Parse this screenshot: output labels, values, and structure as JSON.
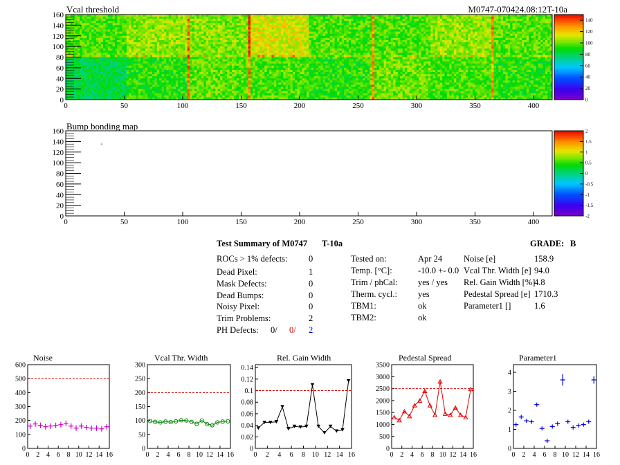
{
  "header": {
    "map1_title": "Vcal threshold",
    "map2_title": "Bump bonding map",
    "module_id": "M0747-070424.08:12T-10a"
  },
  "maps": {
    "x_ticks": [
      "0",
      "50",
      "100",
      "150",
      "200",
      "250",
      "300",
      "350",
      "400"
    ],
    "x_tick_values": [
      0,
      50,
      100,
      150,
      200,
      250,
      300,
      350,
      400
    ],
    "xlim": [
      0,
      416
    ],
    "y_ticks": [
      "0",
      "20",
      "40",
      "60",
      "80",
      "100",
      "120",
      "140",
      "160"
    ],
    "y_tick_values": [
      0,
      20,
      40,
      60,
      80,
      100,
      120,
      140,
      160
    ],
    "ylim": [
      0,
      160
    ],
    "vcal_colorbar_ticks": [
      "0",
      "20",
      "40",
      "60",
      "80",
      "100",
      "120",
      "140"
    ],
    "vcal_colorbar_values": [
      0,
      20,
      40,
      60,
      80,
      100,
      120,
      140
    ],
    "vcal_colorbar_range": [
      0,
      150
    ],
    "bump_colorbar_ticks": [
      "2",
      "1.5",
      "1",
      "0.5",
      "0",
      "-0.5",
      "-1",
      "-1.5",
      "-2"
    ],
    "bump_colorbar_values": [
      2,
      1.5,
      1,
      0.5,
      0,
      -0.5,
      -1,
      -1.5,
      -2
    ],
    "bump_colorbar_range": [
      -2,
      2
    ],
    "vcal_roc_mean_threshold": [
      [
        96,
        104,
        102,
        112,
        96,
        96,
        104,
        98
      ],
      [
        82,
        92,
        98,
        96,
        92,
        100,
        96,
        92
      ]
    ],
    "vcal_hot_columns": [
      104,
      105,
      156,
      262,
      364
    ],
    "bump_marked_pixel": [
      30,
      136
    ]
  },
  "summary": {
    "title": "Test Summary of M0747",
    "module_label": "T-10a",
    "grade_label": "GRADE:",
    "grade_value": "B",
    "left": [
      {
        "label": "ROCs > 1% defects:",
        "value": "0"
      },
      {
        "label": "Dead Pixel:",
        "value": "1"
      },
      {
        "label": "Mask Defects:",
        "value": "0"
      },
      {
        "label": "Dead Bumps:",
        "value": "0"
      },
      {
        "label": "Noisy Pixel:",
        "value": "0"
      },
      {
        "label": "Trim Problems:",
        "value": "2"
      }
    ],
    "ph_defects": {
      "label": "PH Defects:",
      "v1": "0/",
      "v2": "0/",
      "v3": "2"
    },
    "middle": [
      {
        "label": "Tested on:",
        "value": "Apr 24"
      },
      {
        "label": "Temp. [°C]:",
        "value": "-10.0 +- 0.0"
      },
      {
        "label": "Trim / phCal:",
        "value": "yes / yes"
      },
      {
        "label": "Therm. cycl.:",
        "value": "yes"
      },
      {
        "label": "TBM1:",
        "value": "ok"
      },
      {
        "label": "TBM2:",
        "value": "ok"
      }
    ],
    "right": [
      {
        "label": "Noise [e]",
        "value": "158.9"
      },
      {
        "label": "Vcal Thr. Width [e]",
        "value": "94.0"
      },
      {
        "label": "Rel. Gain Width [%]",
        "value": "4.8"
      },
      {
        "label": "Pedestal Spread [e]",
        "value": "1710.3"
      },
      {
        "label": "Parameter1 []",
        "value": "1.6"
      }
    ]
  },
  "colors": {
    "noise": "#cc00cc",
    "vcal": "#008800",
    "relgain": "#000000",
    "pedestal": "#dd0000",
    "param1": "#0000dd",
    "limit_line": "#cc0000"
  },
  "chart_data": [
    {
      "type": "line",
      "title": "Noise",
      "marker": "cross",
      "x": [
        0,
        1,
        2,
        3,
        4,
        5,
        6,
        7,
        8,
        9,
        10,
        11,
        12,
        13,
        14,
        15
      ],
      "values": [
        160,
        175,
        165,
        155,
        160,
        165,
        170,
        180,
        160,
        145,
        160,
        150,
        145,
        145,
        140,
        155
      ],
      "ylim": [
        0,
        600
      ],
      "yticks": [
        0,
        100,
        200,
        300,
        400,
        500,
        600
      ],
      "xlim": [
        0,
        16
      ],
      "xticks": [
        0,
        2,
        4,
        6,
        8,
        10,
        12,
        14,
        16
      ],
      "limit": 500,
      "connect": false
    },
    {
      "type": "line",
      "title": "Vcal Thr. Width",
      "marker": "circle",
      "x": [
        0,
        1,
        2,
        3,
        4,
        5,
        6,
        7,
        8,
        9,
        10,
        11,
        12,
        13,
        14,
        15
      ],
      "values": [
        98,
        95,
        93,
        96,
        94,
        97,
        101,
        100,
        95,
        88,
        100,
        87,
        83,
        93,
        96,
        97
      ],
      "ylim": [
        0,
        300
      ],
      "yticks": [
        0,
        50,
        100,
        150,
        200,
        250,
        300
      ],
      "xlim": [
        0,
        16
      ],
      "xticks": [
        0,
        2,
        4,
        6,
        8,
        10,
        12,
        14,
        16
      ],
      "limit": 200,
      "connect": true
    },
    {
      "type": "line",
      "title": "Rel. Gain Width",
      "marker": "triangle-down",
      "x": [
        0,
        1,
        2,
        3,
        4,
        5,
        6,
        7,
        8,
        9,
        10,
        11,
        12,
        13,
        14,
        15
      ],
      "values": [
        0.035,
        0.045,
        0.045,
        0.046,
        0.072,
        0.034,
        0.038,
        0.037,
        0.038,
        0.11,
        0.038,
        0.027,
        0.038,
        0.03,
        0.032,
        0.117
      ],
      "ylim": [
        0,
        0.145
      ],
      "yticks": [
        0,
        0.02,
        0.04,
        0.06,
        0.08,
        0.1,
        0.12,
        0.14
      ],
      "ytick_labels": [
        "0",
        "0.02",
        "0.04",
        "0.06",
        "0.08",
        "0.1",
        "0.12",
        "0.14"
      ],
      "xlim": [
        0,
        16
      ],
      "xticks": [
        0,
        2,
        4,
        6,
        8,
        10,
        12,
        14,
        16
      ],
      "limit": 0.1,
      "connect": true
    },
    {
      "type": "line",
      "title": "Pedestal Spread",
      "marker": "triangle-up",
      "x": [
        0,
        1,
        2,
        3,
        4,
        5,
        6,
        7,
        8,
        9,
        10,
        11,
        12,
        13,
        14,
        15
      ],
      "values": [
        1300,
        1180,
        1550,
        1350,
        1800,
        2000,
        2400,
        1800,
        1400,
        2800,
        1450,
        1400,
        1700,
        1400,
        1300,
        2480
      ],
      "ylim": [
        0,
        3500
      ],
      "yticks": [
        0,
        500,
        1000,
        1500,
        2000,
        2500,
        3000,
        3500
      ],
      "xlim": [
        0,
        16
      ],
      "xticks": [
        0,
        2,
        4,
        6,
        8,
        10,
        12,
        14,
        16
      ],
      "limit": 2500,
      "connect": true
    },
    {
      "type": "scatter",
      "title": "Parameter1",
      "marker": "errorbar",
      "x": [
        0,
        1,
        2,
        3,
        4,
        5,
        6,
        7,
        8,
        9,
        10,
        11,
        12,
        13,
        14,
        15
      ],
      "values": [
        1.25,
        1.65,
        1.45,
        1.4,
        2.3,
        1.05,
        0.4,
        1.15,
        1.3,
        3.6,
        1.4,
        1.1,
        1.2,
        1.25,
        1.4,
        3.6
      ],
      "errors": [
        0.05,
        0.05,
        0.05,
        0.05,
        0.05,
        0.05,
        0.05,
        0.05,
        0.05,
        0.3,
        0.05,
        0.05,
        0.05,
        0.05,
        0.05,
        0.2
      ],
      "ylim": [
        0,
        4.4
      ],
      "yticks": [
        0,
        1,
        2,
        3,
        4
      ],
      "xlim": [
        0,
        16
      ],
      "xticks": [
        0,
        2,
        4,
        6,
        8,
        10,
        12,
        14,
        16
      ],
      "limit": null,
      "connect": false
    }
  ]
}
